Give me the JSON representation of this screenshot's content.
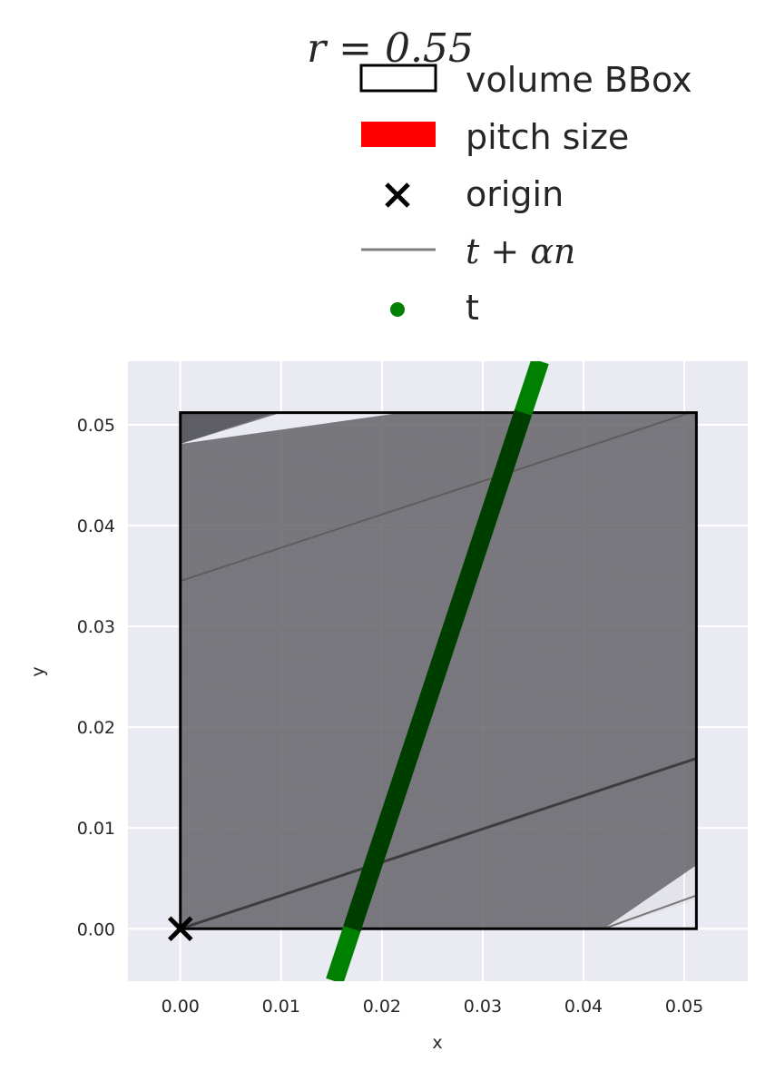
{
  "chart_data": {
    "type": "line",
    "title": "r = 0.55",
    "xlabel": "x",
    "ylabel": "y",
    "xlim": [
      -0.0052,
      0.0563
    ],
    "ylim": [
      -0.0052,
      0.0563
    ],
    "xticks": [
      0.0,
      0.01,
      0.02,
      0.03,
      0.04,
      0.05
    ],
    "yticks": [
      0.0,
      0.01,
      0.02,
      0.03,
      0.04,
      0.05
    ],
    "xtick_labels": [
      "0.00",
      "0.01",
      "0.02",
      "0.03",
      "0.04",
      "0.05"
    ],
    "ytick_labels": [
      "0.00",
      "0.01",
      "0.02",
      "0.03",
      "0.04",
      "0.05"
    ],
    "grid": true,
    "legend_placement": "above plot",
    "volume_bbox": {
      "x": [
        0.0,
        0.0512
      ],
      "y": [
        0.0,
        0.0512
      ]
    },
    "origin": [
      0.0,
      0.0
    ],
    "t_line": {
      "x": [
        0.0153,
        0.0357
      ],
      "y": [
        -0.0052,
        0.0563
      ]
    },
    "ray_direction_slope": 0.33,
    "ray_offsets": [
      0.0,
      0.0033,
      0.0345,
      0.0481
    ],
    "legend": [
      {
        "label": "volume BBox",
        "marker": "open-rect"
      },
      {
        "label": "pitch size",
        "marker": "filled-rect"
      },
      {
        "label": "origin",
        "marker": "x"
      },
      {
        "label": "t + αn",
        "marker": "line"
      },
      {
        "label": "t",
        "marker": "dot"
      }
    ]
  },
  "colors": {
    "axes_bg": "#EAEAF2",
    "grid": "#FFFFFF",
    "bbox": "#000000",
    "pitch": "#FF0000",
    "origin": "#000000",
    "rays": "#505050",
    "t_points": "#008000"
  }
}
